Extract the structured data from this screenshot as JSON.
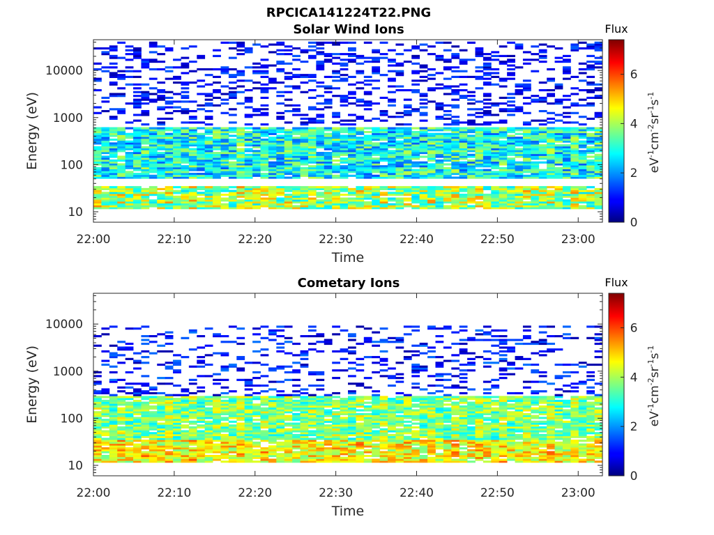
{
  "figure": {
    "title": "RPCICA141224T22.PNG"
  },
  "chart_data": [
    {
      "type": "heatmap",
      "title": "Solar Wind Ions",
      "xlabel": "Time",
      "ylabel": "Energy (eV)",
      "x_ticks": [
        "22:00",
        "22:10",
        "22:20",
        "22:30",
        "22:40",
        "22:50",
        "23:00"
      ],
      "x_range": [
        "22:00",
        "23:03"
      ],
      "y_scale": "log",
      "y_ticks": [
        "10",
        "100",
        "1000",
        "10000"
      ],
      "y_range": [
        6,
        45000
      ],
      "colorbar": {
        "label": "Flux",
        "unit": "eV-1cm-2sr-1s-1",
        "ticks": [
          "0",
          "2",
          "4",
          "6"
        ],
        "range": [
          0,
          7.4
        ],
        "colormap": "jet"
      },
      "features": [
        {
          "energy_min": 12,
          "energy_max": 35,
          "flux_min": 2.5,
          "flux_max": 5.2
        },
        {
          "energy_min": 50,
          "energy_max": 650,
          "flux_min": 1.5,
          "flux_max": 4.0
        },
        {
          "energy_min": 700,
          "energy_max": 40000,
          "flux_min": 0.3,
          "flux_max": 1.6
        }
      ]
    },
    {
      "type": "heatmap",
      "title": "Cometary Ions",
      "xlabel": "Time",
      "ylabel": "Energy (eV)",
      "x_ticks": [
        "22:00",
        "22:10",
        "22:20",
        "22:30",
        "22:40",
        "22:50",
        "23:00"
      ],
      "x_range": [
        "22:00",
        "23:03"
      ],
      "y_scale": "log",
      "y_ticks": [
        "10",
        "100",
        "1000",
        "10000"
      ],
      "y_range": [
        6,
        45000
      ],
      "colorbar": {
        "label": "Flux",
        "unit": "eV-1cm-2sr-1s-1",
        "ticks": [
          "0",
          "2",
          "4",
          "6"
        ],
        "range": [
          0,
          7.4
        ],
        "colormap": "jet"
      },
      "features": [
        {
          "energy_min": 12,
          "energy_max": 35,
          "flux_min": 3.5,
          "flux_max": 5.6
        },
        {
          "energy_min": 35,
          "energy_max": 300,
          "flux_min": 2.6,
          "flux_max": 4.6
        },
        {
          "energy_min": 300,
          "energy_max": 9000,
          "flux_min": 0.3,
          "flux_max": 1.8
        }
      ]
    }
  ]
}
